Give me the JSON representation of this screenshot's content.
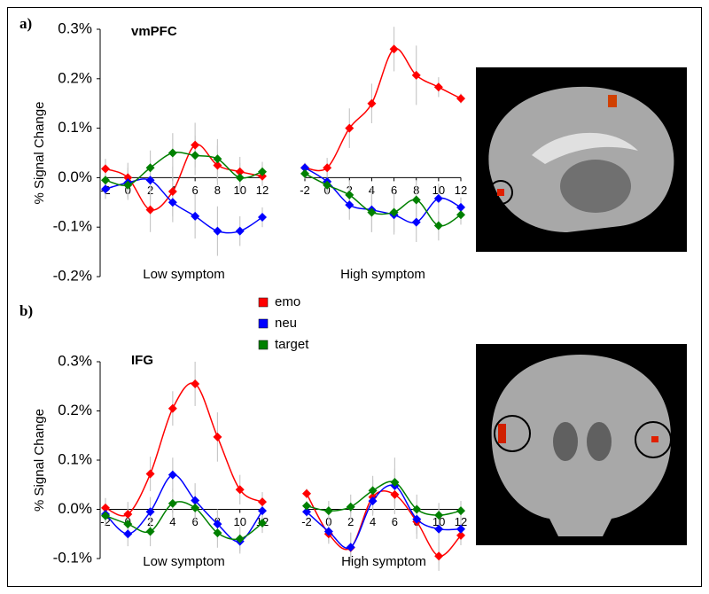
{
  "chart_data": [
    {
      "type": "line",
      "panel": "a)",
      "title": "vmPFC",
      "ylabel": "% Signal Change",
      "ylim": [
        -0.2,
        0.3
      ],
      "yticks": [
        {
          "value": 0.3,
          "label": "0.3%"
        },
        {
          "value": 0.2,
          "label": "0.2%"
        },
        {
          "value": 0.1,
          "label": "0.1%"
        },
        {
          "value": 0.0,
          "label": "0.0%"
        },
        {
          "value": -0.1,
          "label": "-0.1%"
        },
        {
          "value": -0.2,
          "label": "-0.2%"
        }
      ],
      "subplots": [
        {
          "xlabel": "Low symptom",
          "x": [
            -2,
            0,
            2,
            4,
            6,
            8,
            10,
            12
          ],
          "xlim": [
            -2,
            12
          ],
          "xticks": [
            -2,
            0,
            2,
            4,
            6,
            8,
            10,
            12
          ],
          "series": [
            {
              "values": [
                0.018,
                0.0,
                -0.065,
                -0.028,
                0.066,
                0.025,
                0.012,
                0.003
              ],
              "errors": [
                0.02,
                0.03,
                0.045,
                0.05,
                0.045,
                0.04,
                0.03,
                0.02
              ]
            },
            {
              "values": [
                -0.023,
                -0.01,
                -0.005,
                -0.05,
                -0.078,
                -0.108,
                -0.108,
                -0.08
              ],
              "errors": [
                0.02,
                0.03,
                0.04,
                0.04,
                0.045,
                0.05,
                0.03,
                0.02
              ]
            },
            {
              "values": [
                -0.005,
                -0.015,
                0.02,
                0.05,
                0.045,
                0.038,
                0.0,
                0.012
              ],
              "errors": [
                0.02,
                0.03,
                0.035,
                0.04,
                0.04,
                0.04,
                0.03,
                0.02
              ]
            }
          ]
        },
        {
          "xlabel": "High symptom",
          "x": [
            -2,
            0,
            2,
            4,
            6,
            8,
            10,
            12
          ],
          "xlim": [
            -2,
            12
          ],
          "xticks": [
            -2,
            0,
            2,
            4,
            6,
            8,
            10,
            12
          ],
          "series": [
            {
              "values": [
                0.02,
                0.02,
                0.1,
                0.15,
                0.26,
                0.207,
                0.183,
                0.16
              ],
              "errors": [
                0.01,
                0.02,
                0.04,
                0.04,
                0.045,
                0.06,
                0.02,
                0.01
              ]
            },
            {
              "values": [
                0.02,
                -0.008,
                -0.055,
                -0.065,
                -0.075,
                -0.09,
                -0.042,
                -0.06
              ],
              "errors": [
                0.01,
                0.02,
                0.03,
                0.045,
                0.04,
                0.04,
                0.03,
                0.02
              ]
            },
            {
              "values": [
                0.008,
                -0.015,
                -0.035,
                -0.07,
                -0.07,
                -0.045,
                -0.097,
                -0.075
              ],
              "errors": [
                0.01,
                0.02,
                0.03,
                0.04,
                0.04,
                0.04,
                0.03,
                0.02
              ]
            }
          ]
        }
      ]
    },
    {
      "type": "line",
      "panel": "b)",
      "title": "IFG",
      "ylabel": "% Signal Change",
      "ylim": [
        -0.1,
        0.3
      ],
      "yticks": [
        {
          "value": 0.3,
          "label": "0.3%"
        },
        {
          "value": 0.2,
          "label": "0.2%"
        },
        {
          "value": 0.1,
          "label": "0.1%"
        },
        {
          "value": 0.0,
          "label": "0.0%"
        },
        {
          "value": -0.1,
          "label": "-0.1%"
        }
      ],
      "legend": [
        {
          "name": "emo",
          "color": "#ff0000"
        },
        {
          "name": "neu",
          "color": "#0000ff"
        },
        {
          "name": "target",
          "color": "#008000"
        }
      ],
      "subplots": [
        {
          "xlabel": "Low symptom",
          "x": [
            -2,
            0,
            2,
            4,
            6,
            8,
            10,
            12
          ],
          "xlim": [
            -2,
            12
          ],
          "xticks": [
            -2,
            0,
            2,
            4,
            6,
            8,
            10,
            12
          ],
          "series": [
            {
              "values": [
                0.003,
                -0.01,
                0.072,
                0.205,
                0.255,
                0.147,
                0.04,
                0.015
              ],
              "errors": [
                0.02,
                0.025,
                0.035,
                0.035,
                0.045,
                0.05,
                0.03,
                0.02
              ]
            },
            {
              "values": [
                -0.01,
                -0.05,
                -0.005,
                0.07,
                0.018,
                -0.03,
                -0.065,
                -0.003
              ],
              "errors": [
                0.02,
                0.025,
                0.03,
                0.035,
                0.035,
                0.03,
                0.025,
                0.02
              ]
            },
            {
              "values": [
                -0.013,
                -0.03,
                -0.045,
                0.012,
                0.003,
                -0.048,
                -0.06,
                -0.028
              ],
              "errors": [
                0.02,
                0.025,
                0.03,
                0.03,
                0.03,
                0.03,
                0.025,
                0.02
              ]
            }
          ]
        },
        {
          "xlabel": "High symptom",
          "x": [
            -2,
            0,
            2,
            4,
            6,
            8,
            10,
            12
          ],
          "xlim": [
            -2,
            12
          ],
          "xticks": [
            -2,
            0,
            2,
            4,
            6,
            8,
            10,
            12
          ],
          "series": [
            {
              "values": [
                0.032,
                -0.05,
                -0.078,
                0.025,
                0.03,
                -0.025,
                -0.095,
                -0.053
              ],
              "errors": [
                0.01,
                0.02,
                0.03,
                0.035,
                0.04,
                0.035,
                0.03,
                0.02
              ]
            },
            {
              "values": [
                -0.005,
                -0.045,
                -0.077,
                0.017,
                0.048,
                -0.02,
                -0.04,
                -0.04
              ],
              "errors": [
                0.01,
                0.02,
                0.03,
                0.03,
                0.035,
                0.03,
                0.025,
                0.02
              ]
            },
            {
              "values": [
                0.007,
                -0.003,
                0.005,
                0.038,
                0.055,
                0.0,
                -0.012,
                -0.003
              ],
              "errors": [
                0.01,
                0.02,
                0.025,
                0.03,
                0.05,
                0.03,
                0.025,
                0.02
              ]
            }
          ]
        }
      ]
    }
  ]
}
